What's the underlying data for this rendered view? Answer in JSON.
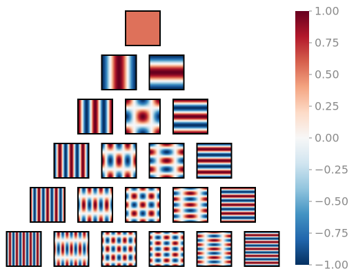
{
  "chart_data": {
    "type": "heatmap",
    "description": "2D basis functions cos(m*pi*x)*cos(n*pi*y) on [-1,1]^2 arranged as a triangle of panels",
    "rows": [
      [
        {
          "m": 0,
          "n": 0
        }
      ],
      [
        {
          "m": 1,
          "n": 0
        },
        {
          "m": 0,
          "n": 1
        }
      ],
      [
        {
          "m": 2,
          "n": 0
        },
        {
          "m": 1,
          "n": 1
        },
        {
          "m": 0,
          "n": 2
        }
      ],
      [
        {
          "m": 3,
          "n": 0
        },
        {
          "m": 2,
          "n": 1
        },
        {
          "m": 1,
          "n": 2
        },
        {
          "m": 0,
          "n": 3
        }
      ],
      [
        {
          "m": 4,
          "n": 0
        },
        {
          "m": 3,
          "n": 1
        },
        {
          "m": 2,
          "n": 2
        },
        {
          "m": 1,
          "n": 3
        },
        {
          "m": 0,
          "n": 4
        }
      ],
      [
        {
          "m": 5,
          "n": 0
        },
        {
          "m": 4,
          "n": 1
        },
        {
          "m": 3,
          "n": 2
        },
        {
          "m": 2,
          "n": 3
        },
        {
          "m": 1,
          "n": 4
        },
        {
          "m": 0,
          "n": 5
        }
      ]
    ],
    "colormap": "RdBu_r",
    "vlim": [
      -1.0,
      1.0
    ],
    "colorbar": {
      "ticks": [
        1.0,
        0.75,
        0.5,
        0.25,
        0.0,
        -0.25,
        -0.5,
        -0.75,
        -1.0
      ],
      "tick_labels": [
        "1.00",
        "0.75",
        "0.50",
        "0.25",
        "0.00",
        "−0.25",
        "−0.50",
        "−0.75",
        "−1.00"
      ]
    },
    "title": "",
    "xlabel": "",
    "ylabel": "",
    "grid": false
  },
  "colors": {
    "colormap_stops": [
      "#053061",
      "#2166ac",
      "#4393c3",
      "#92c5de",
      "#d1e5f0",
      "#f7f7f7",
      "#fddbc7",
      "#f4a582",
      "#d6604d",
      "#b2182b",
      "#67001f"
    ],
    "frame": "#000000",
    "tick_text": "#8a8a8a"
  }
}
